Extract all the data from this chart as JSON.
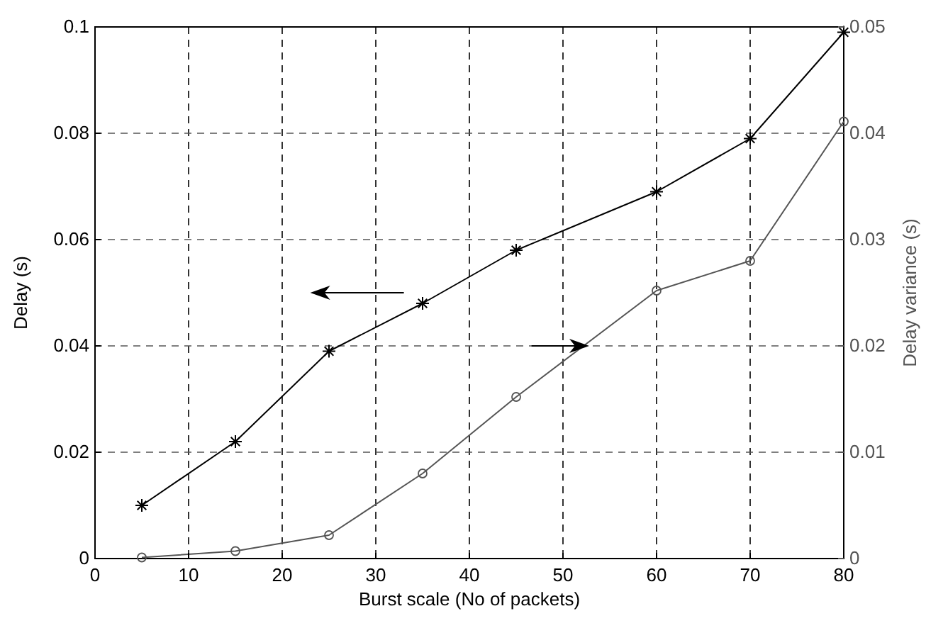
{
  "chart_data": {
    "type": "line",
    "xlabel": "Burst scale (No of packets)",
    "ylabel": "Delay (s)",
    "y2label": "Delay variance (s)",
    "x": [
      5,
      15,
      25,
      35,
      45,
      60,
      70,
      80
    ],
    "series": [
      {
        "color": "#000000",
        "marker": "cross",
        "values": [
          0.01,
          0.022,
          0.039,
          0.048,
          0.058,
          0.069,
          0.079,
          0.099
        ]
      },
      {
        "color": "#555555",
        "marker": "circle",
        "axis": "y2",
        "values": [
          0.0001,
          0.0007,
          0.0022,
          0.008,
          0.0152,
          0.0252,
          0.028,
          0.0411
        ]
      }
    ],
    "xlim": [
      0,
      80
    ],
    "xticks": [
      0,
      10,
      20,
      30,
      40,
      50,
      60,
      70,
      80
    ],
    "ylim": [
      0,
      0.1
    ],
    "yticks": [
      0,
      0.02,
      0.04,
      0.06,
      0.08,
      0.1
    ],
    "y2lim": [
      0,
      0.05
    ],
    "y2ticks": [
      0,
      0.01,
      0.02,
      0.03,
      0.04,
      0.05
    ],
    "grid": true
  }
}
